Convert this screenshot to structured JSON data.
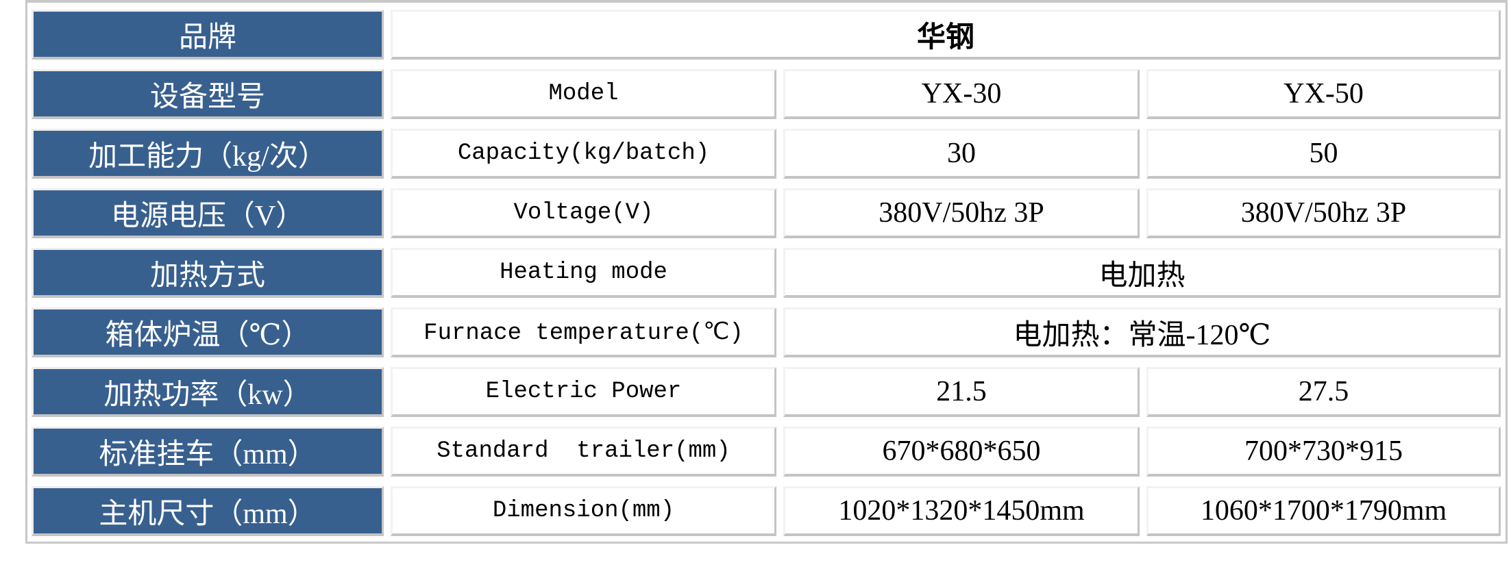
{
  "colors": {
    "header_bg": "#38608f",
    "header_text": "#ffffff",
    "border": "#c4c4c4"
  },
  "rows": [
    {
      "label": "品牌",
      "value": "华钢"
    },
    {
      "label": "设备型号",
      "en": "Model",
      "v1": "YX-30",
      "v2": "YX-50"
    },
    {
      "label": "加工能力（kg/次）",
      "en": "Capacity(kg/batch)",
      "v1": "30",
      "v2": "50"
    },
    {
      "label": "电源电压（V）",
      "en": "Voltage(V)",
      "v1": "380V/50hz 3P",
      "v2": "380V/50hz 3P"
    },
    {
      "label": "加热方式",
      "en": "Heating mode",
      "value": "电加热"
    },
    {
      "label": "箱体炉温（℃）",
      "en": "Furnace temperature(℃)",
      "value": "电加热：常温-120℃"
    },
    {
      "label": "加热功率（kw）",
      "en": "Electric Power",
      "v1": "21.5",
      "v2": "27.5"
    },
    {
      "label": "标准挂车（mm）",
      "en": "Standard  trailer(mm)",
      "v1": "670*680*650",
      "v2": "700*730*915"
    },
    {
      "label": "主机尺寸（mm）",
      "en": "Dimension(mm)",
      "v1": "1020*1320*1450mm",
      "v2": "1060*1700*1790mm"
    }
  ]
}
